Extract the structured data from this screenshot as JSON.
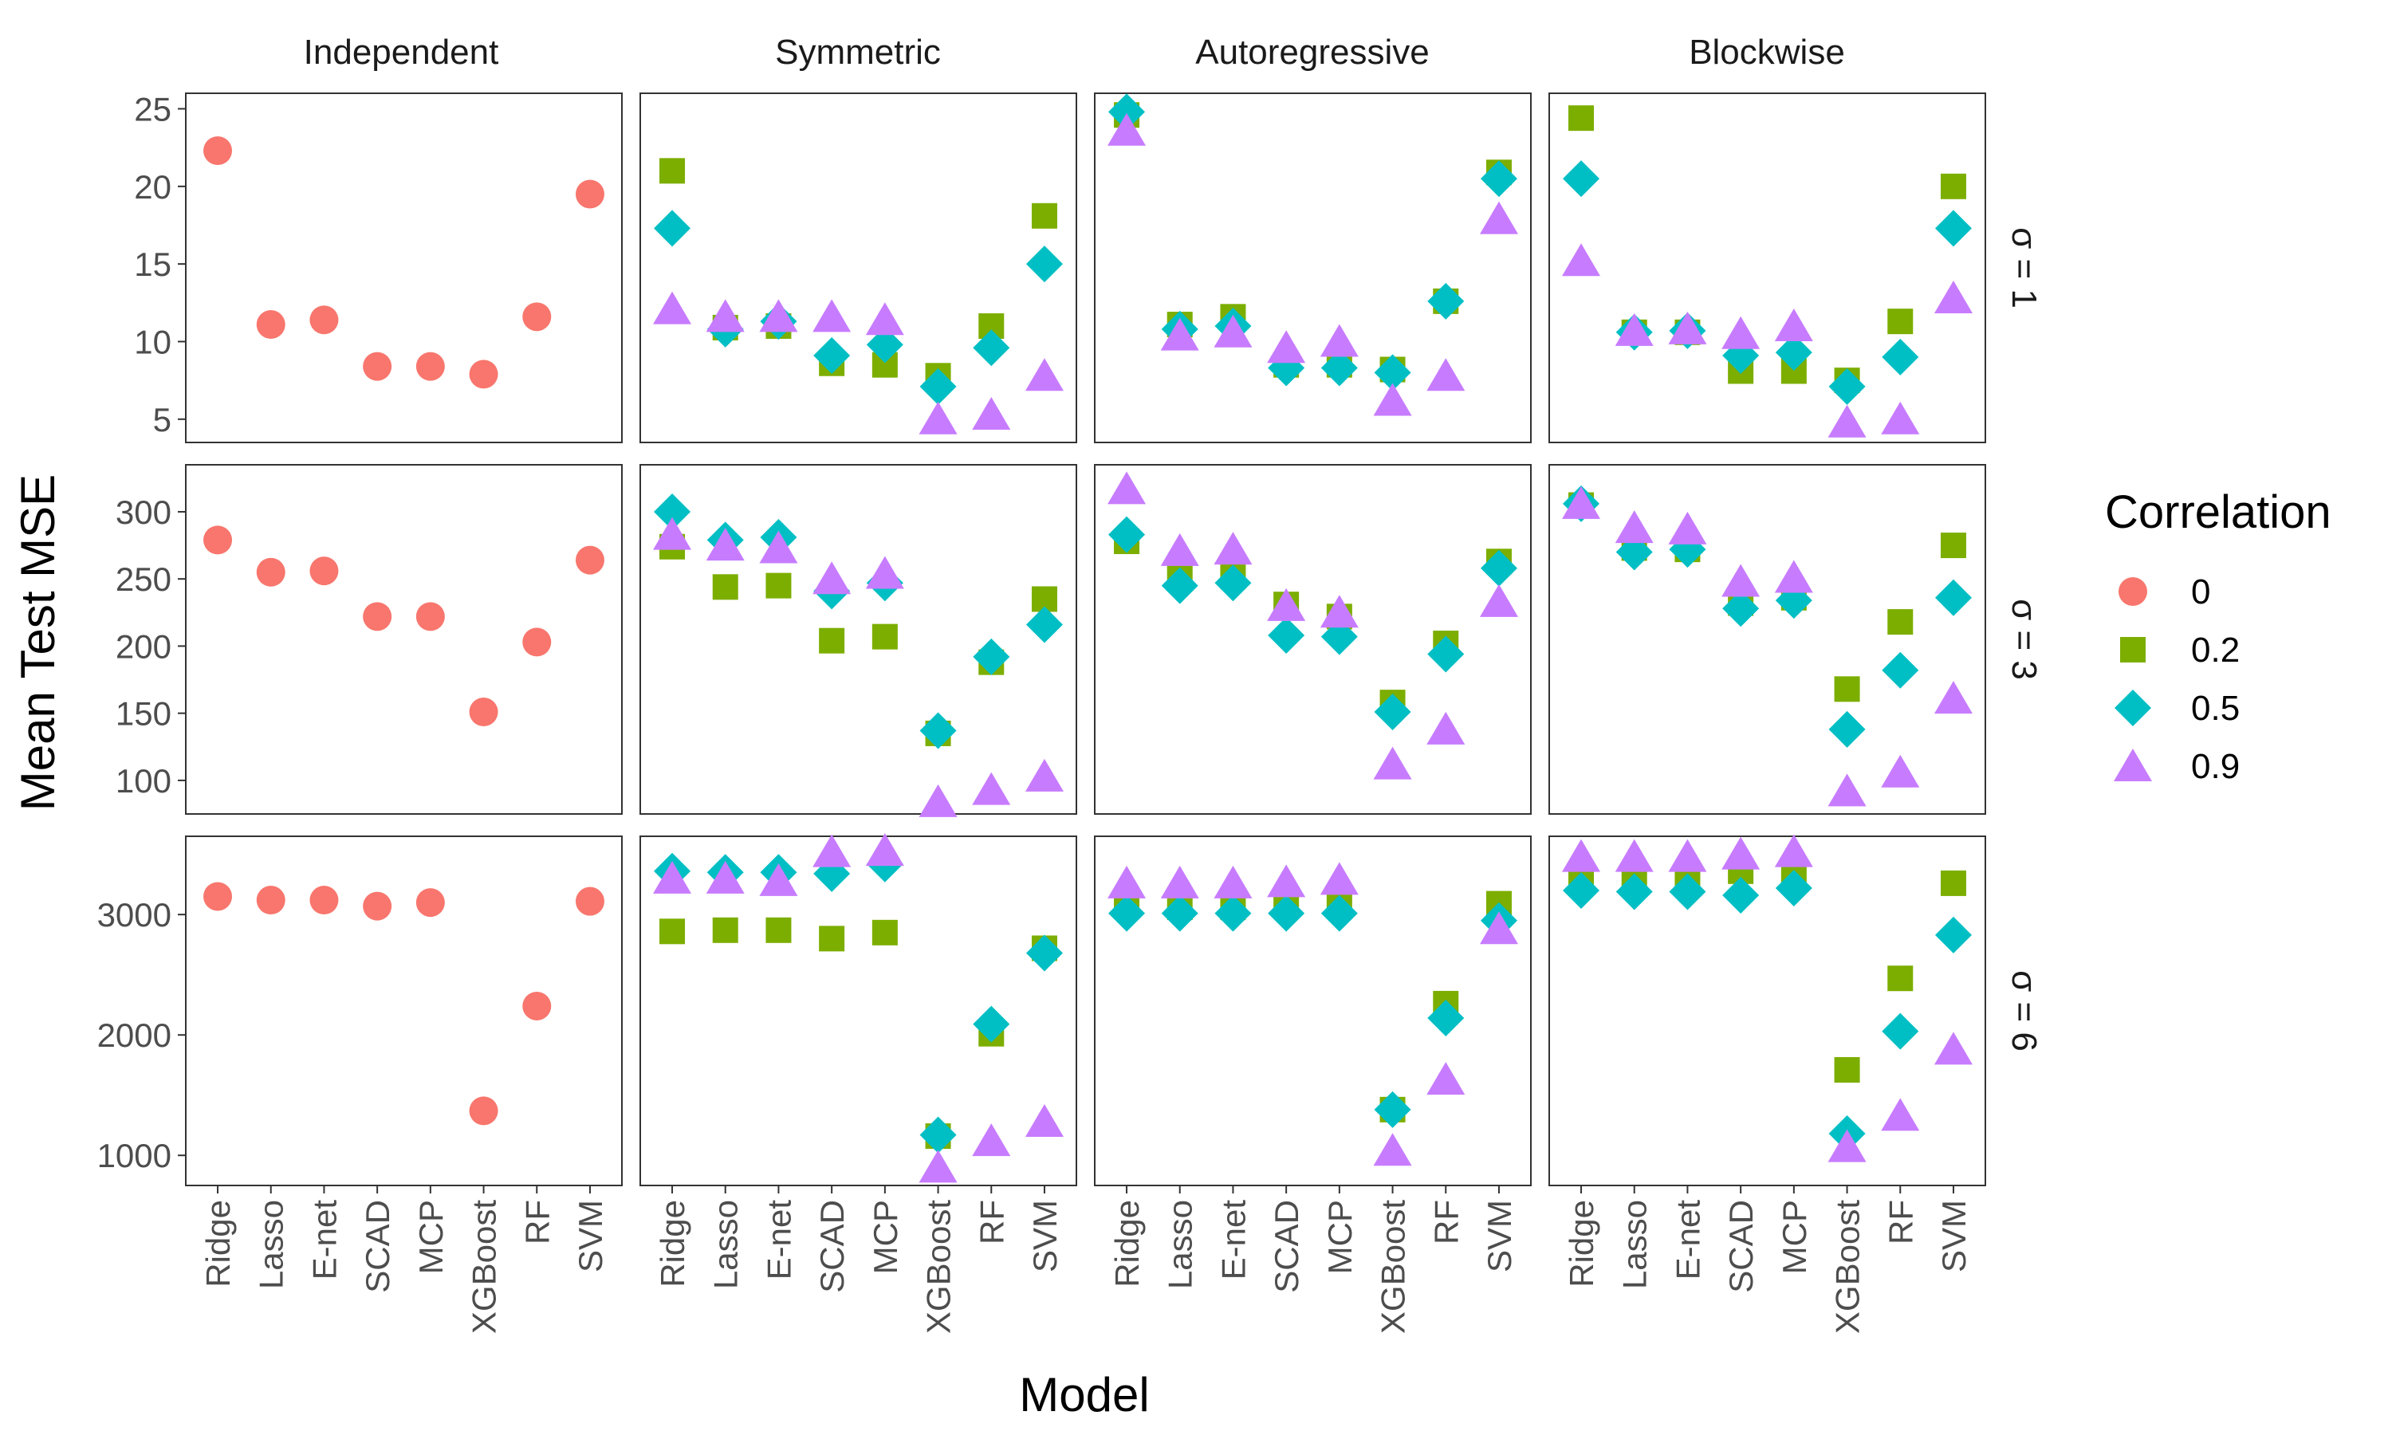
{
  "chart_data": {
    "type": "scatter",
    "xlabel": "Model",
    "ylabel": "Mean Test MSE",
    "models": [
      "Ridge",
      "Lasso",
      "E-net",
      "SCAD",
      "MCP",
      "XGBoost",
      "RF",
      "SVM"
    ],
    "columns": [
      "Independent",
      "Symmetric",
      "Autoregressive",
      "Blockwise"
    ],
    "legend": {
      "title": "Correlation",
      "position": "right",
      "entries": [
        {
          "label": "0",
          "shape": "circle",
          "color": "#F8766D"
        },
        {
          "label": "0.2",
          "shape": "square",
          "color": "#7CAE00"
        },
        {
          "label": "0.5",
          "shape": "diamond",
          "color": "#00BFC4"
        },
        {
          "label": "0.9",
          "shape": "triangle",
          "color": "#C77CFF"
        }
      ]
    },
    "grid": true,
    "rows": [
      {
        "label": "σ = 1",
        "ylim": [
          3.5,
          26
        ],
        "yticks": [
          5,
          10,
          15,
          20,
          25
        ],
        "panels": [
          {
            "series": [
              {
                "corr": "0",
                "values": [
                  22.3,
                  11.1,
                  11.4,
                  8.4,
                  8.4,
                  7.9,
                  11.6,
                  19.5
                ]
              }
            ]
          },
          {
            "series": [
              {
                "corr": "0.2",
                "values": [
                  21.0,
                  10.9,
                  11.0,
                  8.6,
                  8.5,
                  7.8,
                  11.0,
                  18.1
                ]
              },
              {
                "corr": "0.5",
                "values": [
                  17.3,
                  10.8,
                  11.3,
                  9.1,
                  9.8,
                  7.1,
                  9.6,
                  15.0
                ]
              },
              {
                "corr": "0.9",
                "values": [
                  12.1,
                  11.6,
                  11.6,
                  11.6,
                  11.4,
                  5.0,
                  5.3,
                  7.8
                ]
              }
            ]
          },
          {
            "series": [
              {
                "corr": "0.2",
                "values": [
                  24.6,
                  11.1,
                  11.6,
                  8.5,
                  8.5,
                  8.2,
                  12.6,
                  20.9
                ]
              },
              {
                "corr": "0.5",
                "values": [
                  24.8,
                  10.8,
                  11.0,
                  8.3,
                  8.3,
                  8.0,
                  12.6,
                  20.5
                ]
              },
              {
                "corr": "0.9",
                "values": [
                  23.6,
                  10.4,
                  10.6,
                  9.6,
                  10.0,
                  6.2,
                  7.8,
                  17.9
                ]
              }
            ]
          },
          {
            "series": [
              {
                "corr": "0.2",
                "values": [
                  24.4,
                  10.6,
                  10.6,
                  8.1,
                  8.1,
                  7.5,
                  11.3,
                  20.0
                ]
              },
              {
                "corr": "0.5",
                "values": [
                  20.5,
                  10.6,
                  10.7,
                  9.1,
                  9.3,
                  7.1,
                  9.0,
                  17.3
                ]
              },
              {
                "corr": "0.9",
                "values": [
                  15.2,
                  10.7,
                  10.8,
                  10.5,
                  11.0,
                  4.8,
                  5.0,
                  12.8
                ]
              }
            ]
          }
        ]
      },
      {
        "label": "σ = 3",
        "ylim": [
          75,
          335
        ],
        "yticks": [
          100,
          150,
          200,
          250,
          300
        ],
        "panels": [
          {
            "series": [
              {
                "corr": "0",
                "values": [
                  279,
                  255,
                  256,
                  222,
                  222,
                  151,
                  203,
                  264
                ]
              }
            ]
          },
          {
            "series": [
              {
                "corr": "0.2",
                "values": [
                  274,
                  244,
                  245,
                  204,
                  207,
                  135,
                  188,
                  235
                ]
              },
              {
                "corr": "0.5",
                "values": [
                  300,
                  279,
                  281,
                  241,
                  247,
                  137,
                  192,
                  216
                ]
              },
              {
                "corr": "0.9",
                "values": [
                  283,
                  275,
                  273,
                  250,
                  254,
                  84,
                  93,
                  103
                ]
              }
            ]
          },
          {
            "series": [
              {
                "corr": "0.2",
                "values": [
                  278,
                  253,
                  252,
                  231,
                  222,
                  158,
                  202,
                  263
                ]
              },
              {
                "corr": "0.5",
                "values": [
                  283,
                  245,
                  247,
                  208,
                  207,
                  151,
                  194,
                  258
                ]
              },
              {
                "corr": "0.9",
                "values": [
                  317,
                  271,
                  272,
                  230,
                  225,
                  112,
                  138,
                  233
                ]
              }
            ]
          },
          {
            "series": [
              {
                "corr": "0.2",
                "values": [
                  305,
                  273,
                  272,
                  232,
                  236,
                  168,
                  218,
                  275
                ]
              },
              {
                "corr": "0.5",
                "values": [
                  306,
                  270,
                  272,
                  228,
                  234,
                  138,
                  182,
                  236
                ]
              },
              {
                "corr": "0.9",
                "values": [
                  306,
                  288,
                  287,
                  248,
                  251,
                  92,
                  106,
                  161
                ]
              }
            ]
          }
        ]
      },
      {
        "label": "σ = 6",
        "ylim": [
          750,
          3650
        ],
        "yticks": [
          1000,
          2000,
          3000
        ],
        "panels": [
          {
            "series": [
              {
                "corr": "0",
                "values": [
                  3150,
                  3120,
                  3120,
                  3070,
                  3100,
                  1370,
                  2240,
                  3110
                ]
              }
            ]
          },
          {
            "series": [
              {
                "corr": "0.2",
                "values": [
                  2860,
                  2870,
                  2870,
                  2800,
                  2850,
                  1160,
                  2010,
                  2720
                ]
              },
              {
                "corr": "0.5",
                "values": [
                  3360,
                  3350,
                  3350,
                  3340,
                  3420,
                  1170,
                  2090,
                  2680
                ]
              },
              {
                "corr": "0.9",
                "values": [
                  3300,
                  3300,
                  3280,
                  3520,
                  3530,
                  900,
                  1120,
                  1280
                ]
              }
            ]
          },
          {
            "series": [
              {
                "corr": "0.2",
                "values": [
                  3080,
                  3060,
                  3060,
                  3070,
                  3080,
                  1380,
                  2260,
                  3090
                ]
              },
              {
                "corr": "0.5",
                "values": [
                  3010,
                  3010,
                  3010,
                  3010,
                  3010,
                  1380,
                  2140,
                  2950
                ]
              },
              {
                "corr": "0.9",
                "values": [
                  3260,
                  3260,
                  3260,
                  3270,
                  3290,
                  1040,
                  1630,
                  2880
                ]
              }
            ]
          },
          {
            "series": [
              {
                "corr": "0.2",
                "values": [
                  3330,
                  3320,
                  3320,
                  3360,
                  3350,
                  1710,
                  2470,
                  3260
                ]
              },
              {
                "corr": "0.5",
                "values": [
                  3200,
                  3190,
                  3190,
                  3160,
                  3220,
                  1180,
                  2030,
                  2830
                ]
              },
              {
                "corr": "0.9",
                "values": [
                  3480,
                  3480,
                  3480,
                  3500,
                  3520,
                  1070,
                  1330,
                  1880
                ]
              }
            ]
          }
        ]
      }
    ]
  }
}
